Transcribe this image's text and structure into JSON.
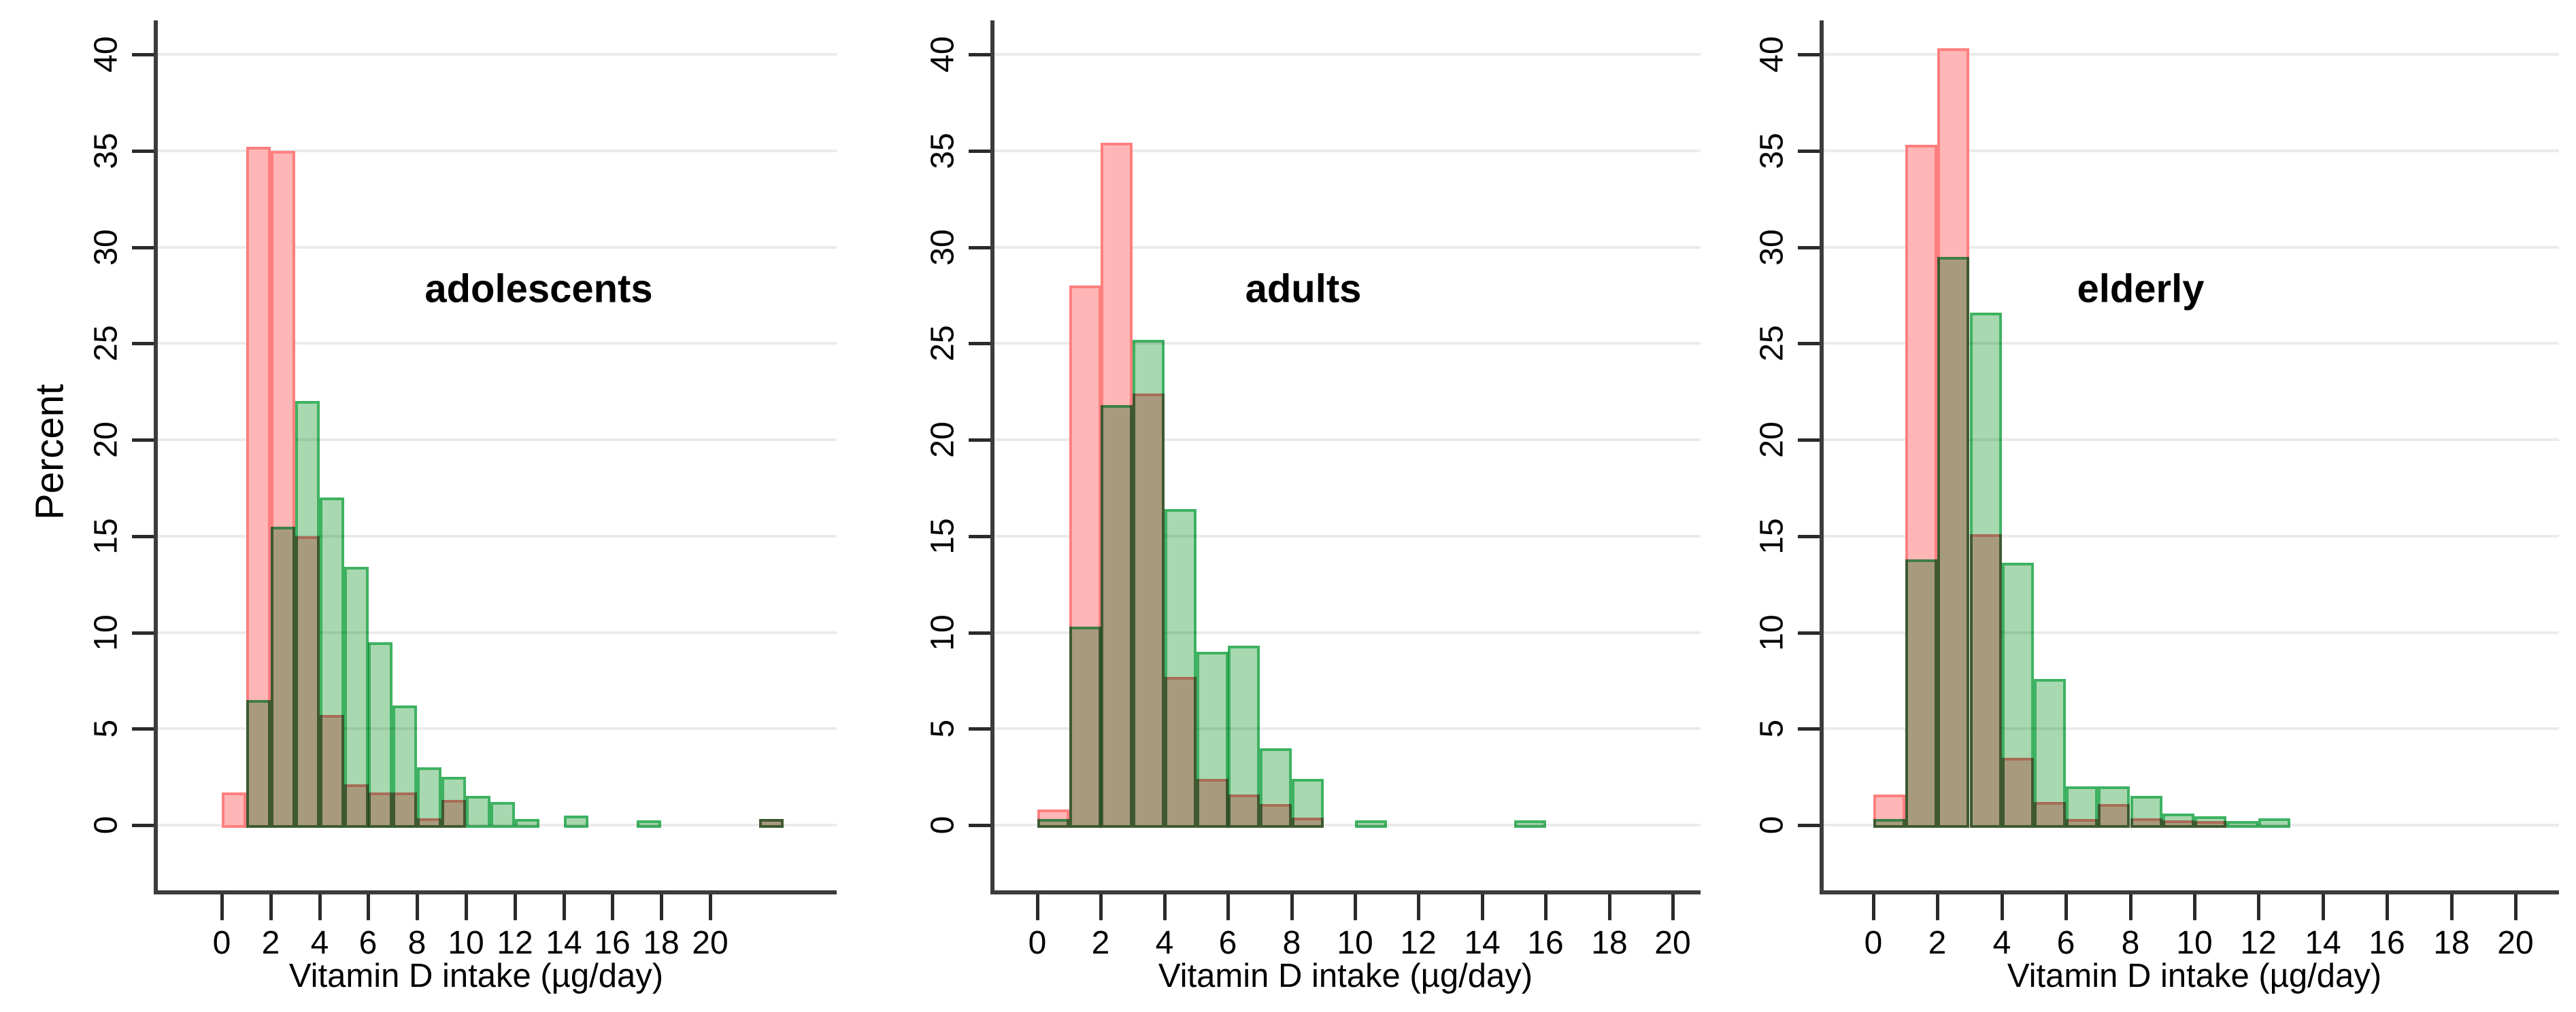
{
  "page": {
    "background": "#ffffff"
  },
  "colors": {
    "red_fill": "#FFB6B6",
    "red_border": "#FF7F7F",
    "green_fill": "#A8D8AF",
    "green_border": "#3EB262",
    "gridline": "#EBEBEB",
    "axis": "#3C3C3C",
    "text": "#000000"
  },
  "chart_data": {
    "type": "histogram",
    "description": "Three overlaid percent histograms (red and green series) of daily vitamin D intake for three age groups",
    "bin_width": 1,
    "y_axis": {
      "title": "Percent",
      "ticks": [
        0,
        5,
        10,
        15,
        20,
        25,
        30,
        35,
        40
      ],
      "range": [
        0,
        42
      ],
      "grid": true
    },
    "x_axis": {
      "title": "Vitamin D intake (µg/day)",
      "ticks": [
        0,
        2,
        4,
        6,
        8,
        10,
        12,
        14,
        16,
        18,
        20
      ]
    },
    "legend": "none",
    "panels": [
      {
        "label": "adolescents",
        "red_bins": [
          [
            0,
            1.7
          ],
          [
            1,
            35.2
          ],
          [
            2,
            35.0
          ],
          [
            3,
            15.0
          ],
          [
            4,
            5.7
          ],
          [
            5,
            2.1
          ],
          [
            6,
            1.7
          ],
          [
            7,
            1.7
          ],
          [
            8,
            0.35
          ],
          [
            9,
            1.3
          ],
          [
            22,
            0.3
          ]
        ],
        "green_bins": [
          [
            1,
            6.5
          ],
          [
            2,
            15.5
          ],
          [
            3,
            22.0
          ],
          [
            4,
            17.0
          ],
          [
            5,
            13.4
          ],
          [
            6,
            9.5
          ],
          [
            7,
            6.2
          ],
          [
            8,
            3.0
          ],
          [
            9,
            2.5
          ],
          [
            10,
            1.5
          ],
          [
            11,
            1.2
          ],
          [
            12,
            0.3
          ],
          [
            14,
            0.5
          ],
          [
            17,
            0.25
          ],
          [
            22,
            0.3
          ]
        ]
      },
      {
        "label": "adults",
        "red_bins": [
          [
            0,
            0.8
          ],
          [
            1,
            28.0
          ],
          [
            2,
            35.4
          ],
          [
            3,
            22.4
          ],
          [
            4,
            7.7
          ],
          [
            5,
            2.4
          ],
          [
            6,
            1.6
          ],
          [
            7,
            1.1
          ],
          [
            8,
            0.4
          ]
        ],
        "green_bins": [
          [
            0,
            0.3
          ],
          [
            1,
            10.3
          ],
          [
            2,
            21.8
          ],
          [
            3,
            25.2
          ],
          [
            4,
            16.4
          ],
          [
            5,
            9.0
          ],
          [
            6,
            9.3
          ],
          [
            7,
            4.0
          ],
          [
            8,
            2.4
          ],
          [
            10,
            0.25
          ],
          [
            15,
            0.25
          ]
        ]
      },
      {
        "label": "elderly",
        "red_bins": [
          [
            0,
            1.6
          ],
          [
            1,
            35.3
          ],
          [
            2,
            40.3
          ],
          [
            3,
            15.1
          ],
          [
            4,
            3.5
          ],
          [
            5,
            1.2
          ],
          [
            6,
            0.3
          ],
          [
            7,
            1.1
          ],
          [
            8,
            0.35
          ],
          [
            9,
            0.25
          ],
          [
            10,
            0.2
          ]
        ],
        "green_bins": [
          [
            0,
            0.3
          ],
          [
            1,
            13.8
          ],
          [
            2,
            29.5
          ],
          [
            3,
            26.6
          ],
          [
            4,
            13.6
          ],
          [
            5,
            7.6
          ],
          [
            6,
            2.0
          ],
          [
            7,
            2.0
          ],
          [
            8,
            1.5
          ],
          [
            9,
            0.6
          ],
          [
            10,
            0.45
          ],
          [
            11,
            0.2
          ],
          [
            12,
            0.35
          ]
        ]
      }
    ]
  }
}
